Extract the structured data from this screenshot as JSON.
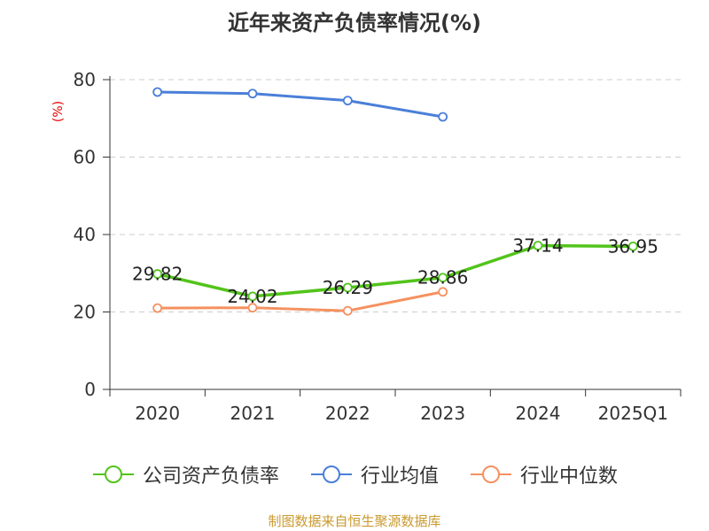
{
  "chart_data": {
    "type": "line",
    "title": "近年来资产负债率情况(%)",
    "ylabel": "(%)",
    "categories": [
      "2020",
      "2021",
      "2022",
      "2023",
      "2024",
      "2025Q1"
    ],
    "ylim": [
      0,
      80
    ],
    "yticks": [
      0,
      20,
      40,
      60,
      80
    ],
    "grid": true,
    "legend_position": "bottom",
    "series": [
      {
        "name": "公司资产负债率",
        "color": "#52c41a",
        "values": [
          29.82,
          24.02,
          26.29,
          28.86,
          37.14,
          36.95
        ],
        "labels": [
          "29.82",
          "24.02",
          "26.29",
          "28.86",
          "37.14",
          "36.95"
        ]
      },
      {
        "name": "行业均值",
        "color": "#4a7fd8",
        "values": [
          76.8,
          76.4,
          74.6,
          70.4,
          null,
          null
        ]
      },
      {
        "name": "行业中位数",
        "color": "#f59160",
        "values": [
          21.0,
          21.1,
          20.3,
          25.2,
          null,
          null
        ]
      }
    ]
  },
  "footer": {
    "source": "制图数据来自恒生聚源数据库"
  }
}
